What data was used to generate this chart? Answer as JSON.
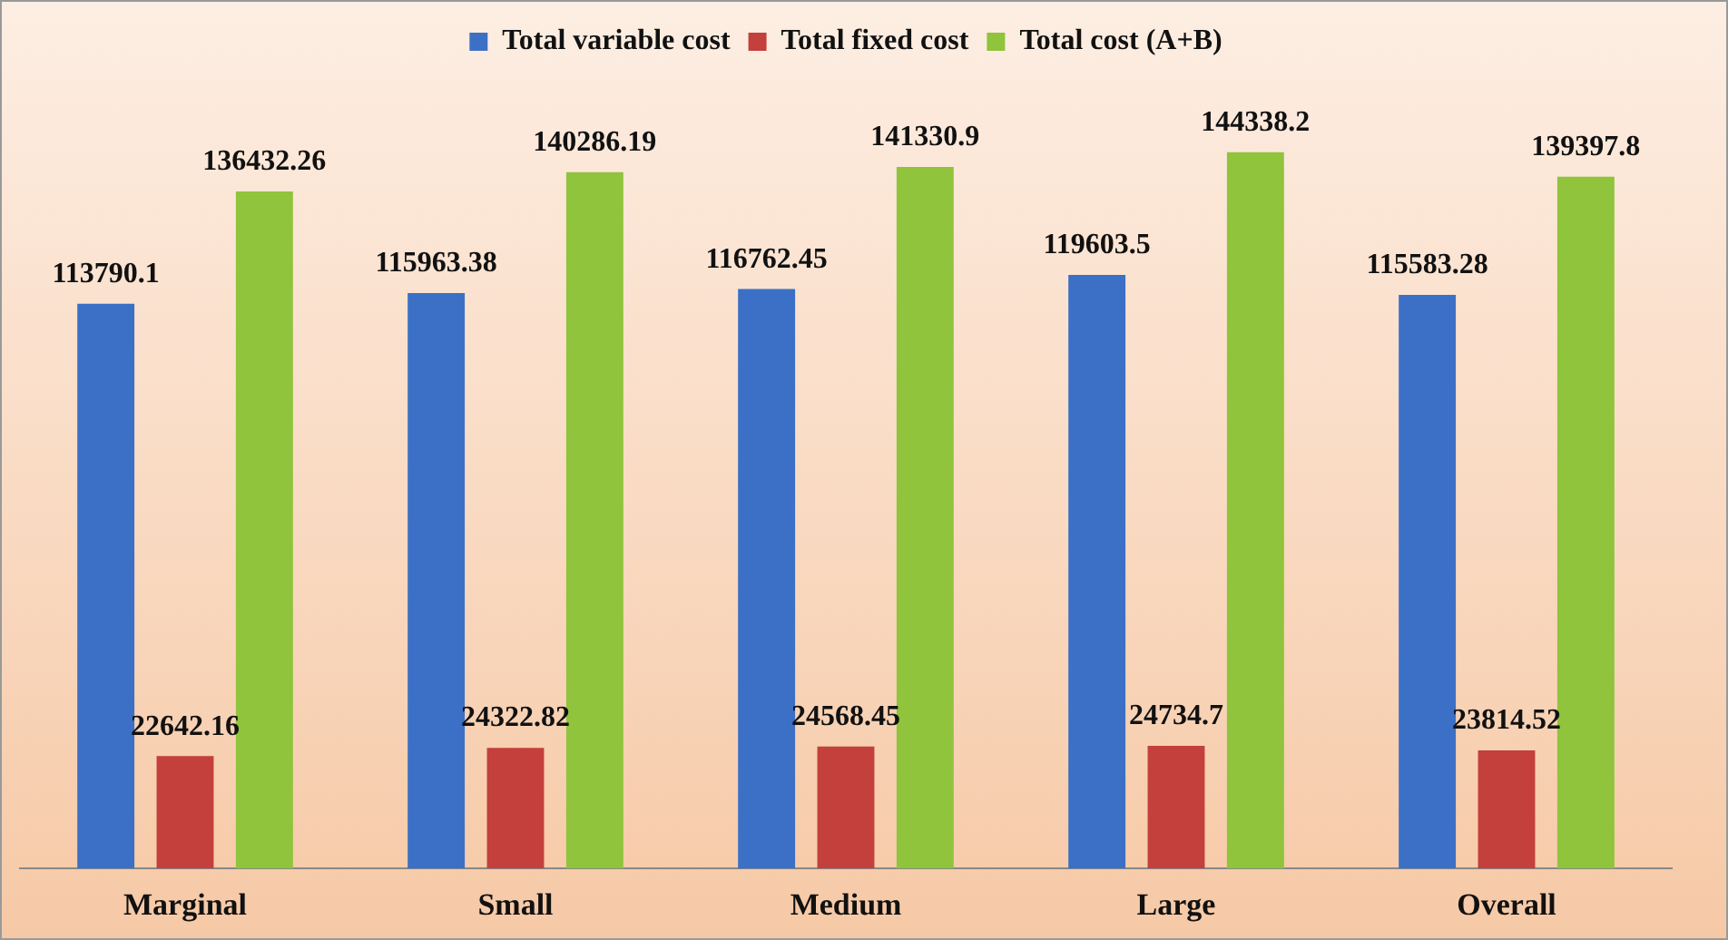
{
  "chart_data": {
    "type": "bar",
    "categories": [
      "Marginal",
      "Small",
      "Medium",
      "Large",
      "Overall"
    ],
    "series": [
      {
        "name": "Total variable cost",
        "color": "#3b70c6",
        "values": [
          113790.1,
          115963.38,
          116762.45,
          119603.5,
          115583.28
        ]
      },
      {
        "name": "Total fixed cost",
        "color": "#c3403c",
        "values": [
          22642.16,
          24322.82,
          24568.45,
          24734.7,
          23814.52
        ]
      },
      {
        "name": "Total cost (A+B)",
        "color": "#8fc43c",
        "values": [
          136432.26,
          140286.19,
          141330.9,
          144338.2,
          139397.8
        ]
      }
    ],
    "data_labels": true,
    "legend": "top",
    "grid": false
  }
}
